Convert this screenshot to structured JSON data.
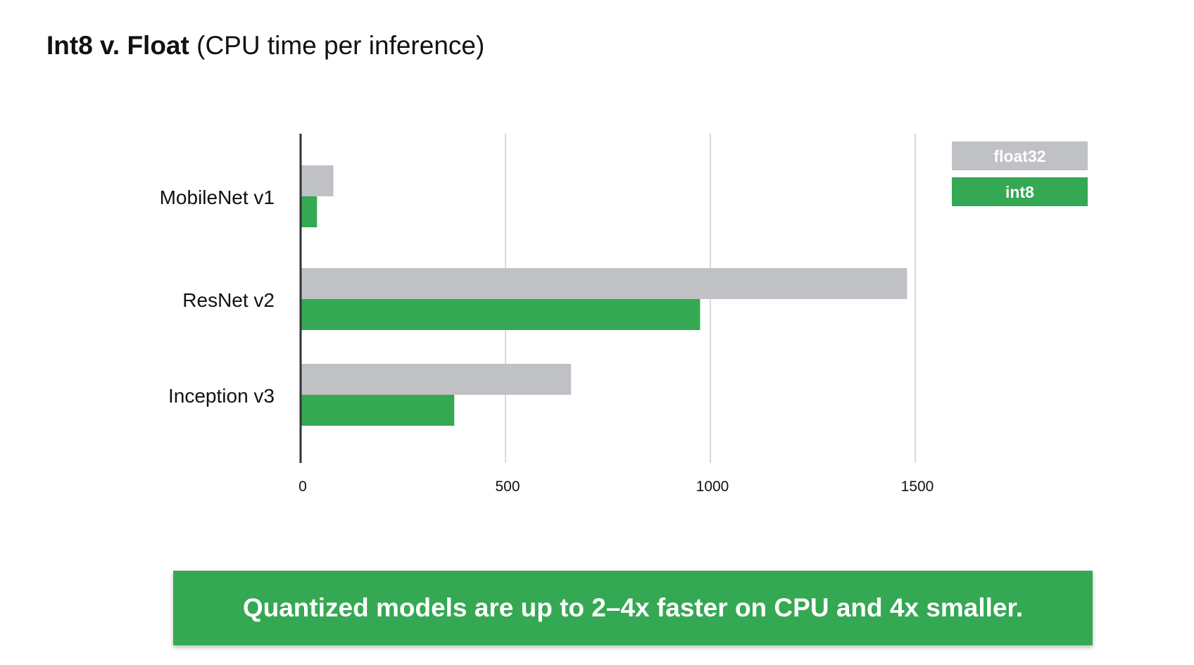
{
  "slide": {
    "title_bold": "Int8 v. Float",
    "title_rest": " (CPU time per inference)",
    "banner_text": "Quantized models are up to 2–4x faster on CPU and 4x smaller."
  },
  "colors": {
    "float32": "#c0c1c5",
    "int8": "#34a853",
    "banner": "#34a853",
    "grid": "#d9d9d9",
    "axis": "#333333"
  },
  "chart_data": {
    "type": "bar",
    "orientation": "horizontal",
    "title": "Int8 v. Float (CPU time per inference)",
    "categories": [
      "MobileNet v1",
      "ResNet v2",
      "Inception v3"
    ],
    "series": [
      {
        "name": "float32",
        "values": [
          80,
          1480,
          660
        ]
      },
      {
        "name": "int8",
        "values": [
          40,
          975,
          375
        ]
      }
    ],
    "xlim": [
      0,
      1500
    ],
    "x_ticks": [
      "0",
      "500",
      "1000",
      "1500"
    ],
    "grid": true,
    "legend_position": "top-right"
  }
}
